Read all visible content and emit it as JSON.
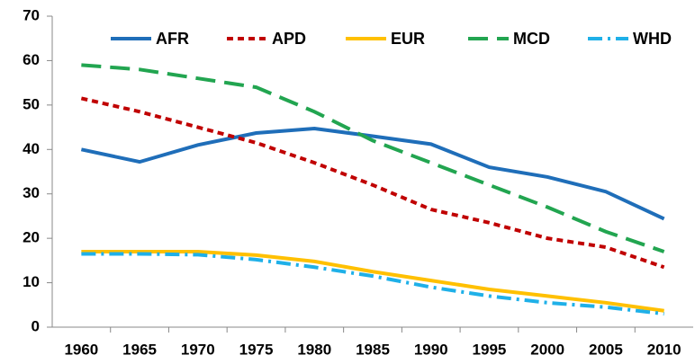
{
  "chart_data": {
    "type": "line",
    "categories": [
      "1960",
      "1965",
      "1970",
      "1975",
      "1980",
      "1985",
      "1990",
      "1995",
      "2000",
      "2005",
      "2010"
    ],
    "series": [
      {
        "name": "AFR",
        "color": "#1f6eb9",
        "style": "solid",
        "values": [
          40,
          37.2,
          41,
          43.7,
          44.7,
          43,
          41.2,
          36,
          33.8,
          30.5,
          24.4
        ]
      },
      {
        "name": "APD",
        "color": "#c00000",
        "style": "dash",
        "values": [
          51.5,
          48.5,
          45,
          41.5,
          37,
          32,
          26.5,
          23.5,
          20,
          18,
          13.5
        ]
      },
      {
        "name": "EUR",
        "color": "#ffc000",
        "style": "solid",
        "values": [
          17,
          17,
          17,
          16.2,
          14.8,
          12.5,
          10.5,
          8.5,
          7,
          5.5,
          3.7
        ]
      },
      {
        "name": "MCD",
        "color": "#22a550",
        "style": "longdash",
        "values": [
          59,
          58,
          56,
          54,
          48.5,
          42,
          37,
          32,
          27,
          21.5,
          17
        ]
      },
      {
        "name": "WHD",
        "color": "#1fb0e8",
        "style": "dashdot",
        "values": [
          16.5,
          16.5,
          16.3,
          15.2,
          13.5,
          11.5,
          9,
          7,
          5.5,
          4.5,
          3
        ]
      }
    ],
    "ylim": [
      0,
      70
    ],
    "yticks": [
      0,
      10,
      20,
      30,
      40,
      50,
      60,
      70
    ],
    "grid": false,
    "legend": "top"
  }
}
